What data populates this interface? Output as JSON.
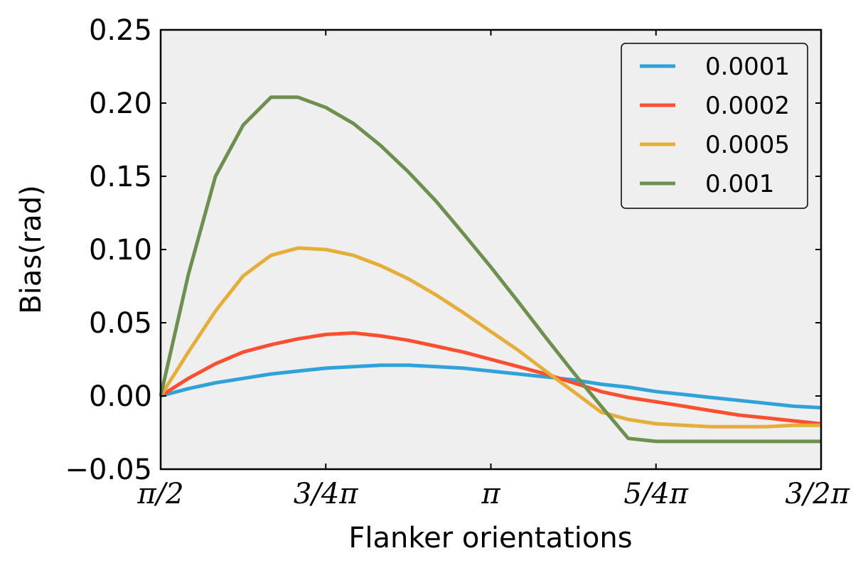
{
  "chart_data": {
    "type": "line",
    "title": "",
    "xlabel": "Flanker orientations",
    "ylabel": "Bias(rad)",
    "xlim": [
      0.5,
      1.5
    ],
    "ylim": [
      -0.05,
      0.25
    ],
    "x_unit": "π",
    "xticks": [
      {
        "value": 0.5,
        "label": "π/2"
      },
      {
        "value": 0.75,
        "label": "3/4π"
      },
      {
        "value": 1.0,
        "label": "π"
      },
      {
        "value": 1.25,
        "label": "5/4π"
      },
      {
        "value": 1.5,
        "label": "3/2π"
      }
    ],
    "yticks": [
      {
        "value": -0.05,
        "label": "−0.05"
      },
      {
        "value": 0.0,
        "label": "0.00"
      },
      {
        "value": 0.05,
        "label": "0.05"
      },
      {
        "value": 0.1,
        "label": "0.10"
      },
      {
        "value": 0.15,
        "label": "0.15"
      },
      {
        "value": 0.2,
        "label": "0.20"
      },
      {
        "value": 0.25,
        "label": "0.25"
      }
    ],
    "grid": false,
    "background": "#efefef",
    "legend_position": "top-right",
    "x": [
      0.5,
      0.542,
      0.583,
      0.625,
      0.667,
      0.708,
      0.75,
      0.792,
      0.833,
      0.875,
      0.917,
      0.958,
      1.0,
      1.042,
      1.083,
      1.125,
      1.167,
      1.208,
      1.25,
      1.292,
      1.333,
      1.375,
      1.417,
      1.458,
      1.5
    ],
    "series": [
      {
        "name": "0.0001",
        "color": "#30a2da",
        "values": [
          0.0,
          0.005,
          0.009,
          0.012,
          0.015,
          0.017,
          0.019,
          0.02,
          0.021,
          0.021,
          0.02,
          0.019,
          0.017,
          0.015,
          0.013,
          0.011,
          0.008,
          0.006,
          0.003,
          0.001,
          -0.001,
          -0.003,
          -0.005,
          -0.007,
          -0.008
        ]
      },
      {
        "name": "0.0002",
        "color": "#fc4f30",
        "values": [
          0.0,
          0.012,
          0.022,
          0.03,
          0.035,
          0.039,
          0.042,
          0.043,
          0.041,
          0.038,
          0.034,
          0.03,
          0.025,
          0.02,
          0.015,
          0.009,
          0.003,
          -0.001,
          -0.004,
          -0.007,
          -0.01,
          -0.013,
          -0.015,
          -0.017,
          -0.019
        ]
      },
      {
        "name": "0.0005",
        "color": "#e5ae38",
        "values": [
          0.0,
          0.03,
          0.058,
          0.082,
          0.096,
          0.101,
          0.1,
          0.096,
          0.089,
          0.08,
          0.069,
          0.057,
          0.044,
          0.031,
          0.017,
          0.003,
          -0.011,
          -0.016,
          -0.019,
          -0.02,
          -0.021,
          -0.021,
          -0.021,
          -0.02,
          -0.02
        ]
      },
      {
        "name": "0.001",
        "color": "#6d904f",
        "values": [
          0.0,
          0.083,
          0.15,
          0.185,
          0.204,
          0.204,
          0.197,
          0.186,
          0.171,
          0.153,
          0.133,
          0.111,
          0.088,
          0.064,
          0.04,
          0.016,
          -0.007,
          -0.029,
          -0.031,
          -0.031,
          -0.031,
          -0.031,
          -0.031,
          -0.031,
          -0.031
        ]
      }
    ]
  }
}
